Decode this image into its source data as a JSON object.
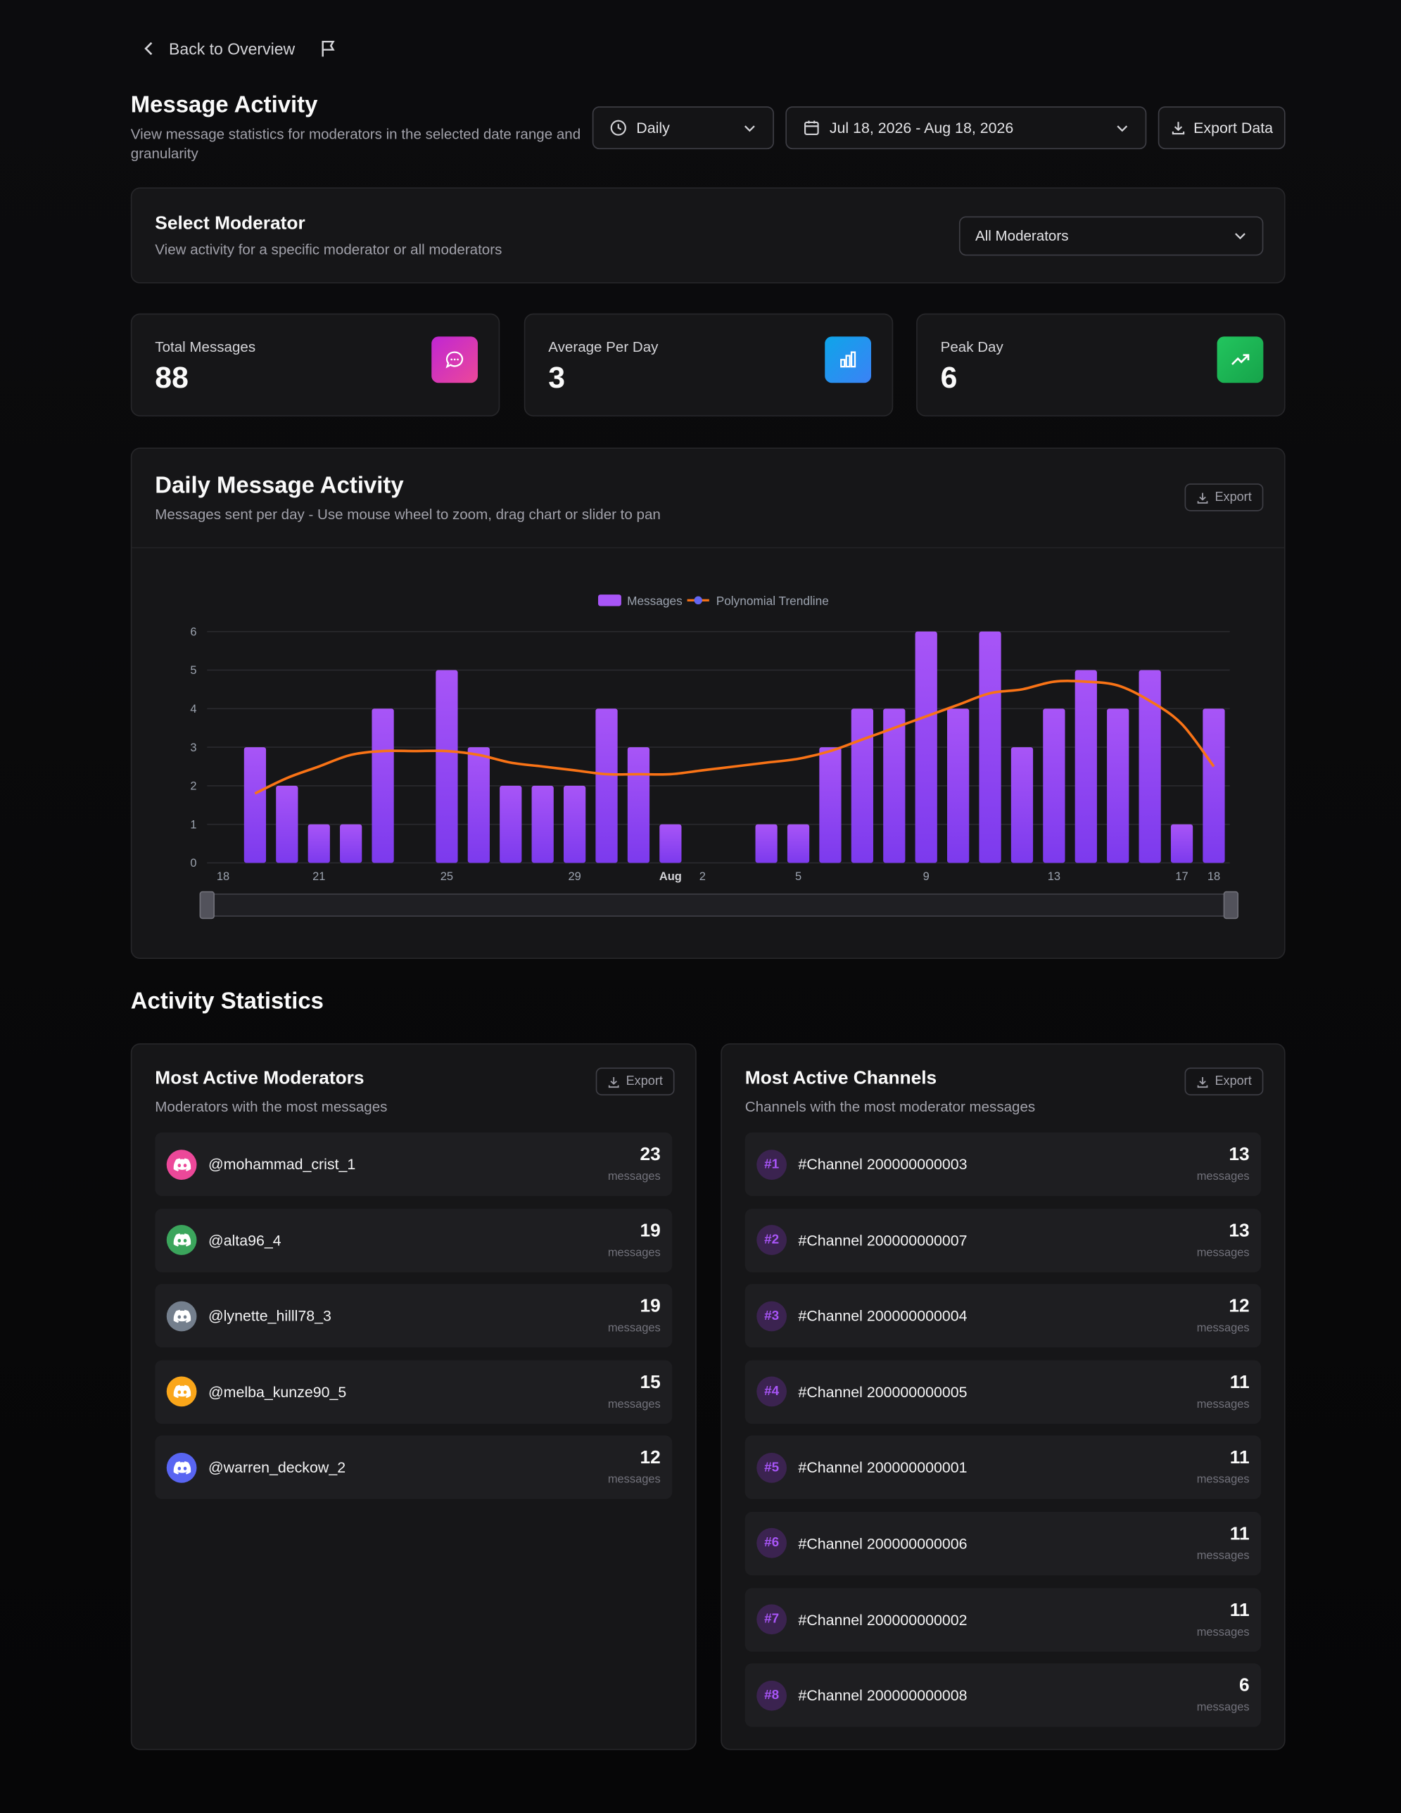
{
  "nav": {
    "back": "Back to Overview"
  },
  "header": {
    "title": "Message Activity",
    "subtitle": "View message statistics for moderators in the selected date range and granularity"
  },
  "controls": {
    "granularity": "Daily",
    "date_range": "Jul 18, 2026 - Aug 18, 2026",
    "export": "Export Data"
  },
  "moderator_select": {
    "title": "Select Moderator",
    "subtitle": "View activity for a specific moderator or all moderators",
    "selected": "All Moderators"
  },
  "stats": [
    {
      "label": "Total Messages",
      "value": 88
    },
    {
      "label": "Average Per Day",
      "value": 3
    },
    {
      "label": "Peak Day",
      "value": 6
    }
  ],
  "chart_card": {
    "title": "Daily Message Activity",
    "subtitle": "Messages sent per day - Use mouse wheel to zoom, drag chart or slider to pan",
    "export": "Export"
  },
  "chart_data": {
    "type": "bar",
    "categories": [
      "18",
      null,
      null,
      "21",
      null,
      null,
      null,
      "25",
      null,
      null,
      null,
      "29",
      null,
      null,
      "Aug",
      "2",
      null,
      null,
      "5",
      null,
      null,
      null,
      "9",
      null,
      null,
      null,
      "13",
      null,
      null,
      null,
      "17",
      "18"
    ],
    "series": [
      {
        "name": "Messages",
        "color": "#a855f7",
        "values": [
          0,
          3,
          2,
          1,
          1,
          4,
          0,
          5,
          3,
          2,
          2,
          2,
          4,
          3,
          1,
          0,
          0,
          1,
          1,
          3,
          4,
          4,
          6,
          4,
          6,
          3,
          4,
          5,
          4,
          5,
          1,
          4
        ]
      },
      {
        "name": "Polynomial Trendline",
        "type": "line",
        "color": "#f97316",
        "values": [
          null,
          1.8,
          2.2,
          2.5,
          2.8,
          2.9,
          2.9,
          2.9,
          2.8,
          2.6,
          2.5,
          2.4,
          2.3,
          2.3,
          2.3,
          2.4,
          2.5,
          2.6,
          2.7,
          2.9,
          3.2,
          3.5,
          3.8,
          4.1,
          4.4,
          4.5,
          4.7,
          4.7,
          4.6,
          4.2,
          3.6,
          2.5
        ]
      }
    ],
    "ylim": [
      0,
      6
    ],
    "yticks": [
      0,
      1,
      2,
      3,
      4,
      5,
      6
    ],
    "grid": true
  },
  "activity": {
    "title": "Activity Statistics",
    "unit": "messages",
    "moderators": {
      "title": "Most Active Moderators",
      "subtitle": "Moderators with the most messages",
      "export": "Export",
      "items": [
        {
          "name": "@mohammad_crist_1",
          "count": 23,
          "color": "#ec4899"
        },
        {
          "name": "@alta96_4",
          "count": 19,
          "color": "#3ba55c"
        },
        {
          "name": "@lynette_hilll78_3",
          "count": 19,
          "color": "#747f8d"
        },
        {
          "name": "@melba_kunze90_5",
          "count": 15,
          "color": "#faa61a"
        },
        {
          "name": "@warren_deckow_2",
          "count": 12,
          "color": "#5865f2"
        }
      ]
    },
    "channels": {
      "title": "Most Active Channels",
      "subtitle": "Channels with the most moderator messages",
      "export": "Export",
      "items": [
        {
          "rank": "#1",
          "name": "#Channel 200000000003",
          "count": 13
        },
        {
          "rank": "#2",
          "name": "#Channel 200000000007",
          "count": 13
        },
        {
          "rank": "#3",
          "name": "#Channel 200000000004",
          "count": 12
        },
        {
          "rank": "#4",
          "name": "#Channel 200000000005",
          "count": 11
        },
        {
          "rank": "#5",
          "name": "#Channel 200000000001",
          "count": 11
        },
        {
          "rank": "#6",
          "name": "#Channel 200000000006",
          "count": 11
        },
        {
          "rank": "#7",
          "name": "#Channel 200000000002",
          "count": 11
        },
        {
          "rank": "#8",
          "name": "#Channel 200000000008",
          "count": 6
        }
      ]
    }
  }
}
